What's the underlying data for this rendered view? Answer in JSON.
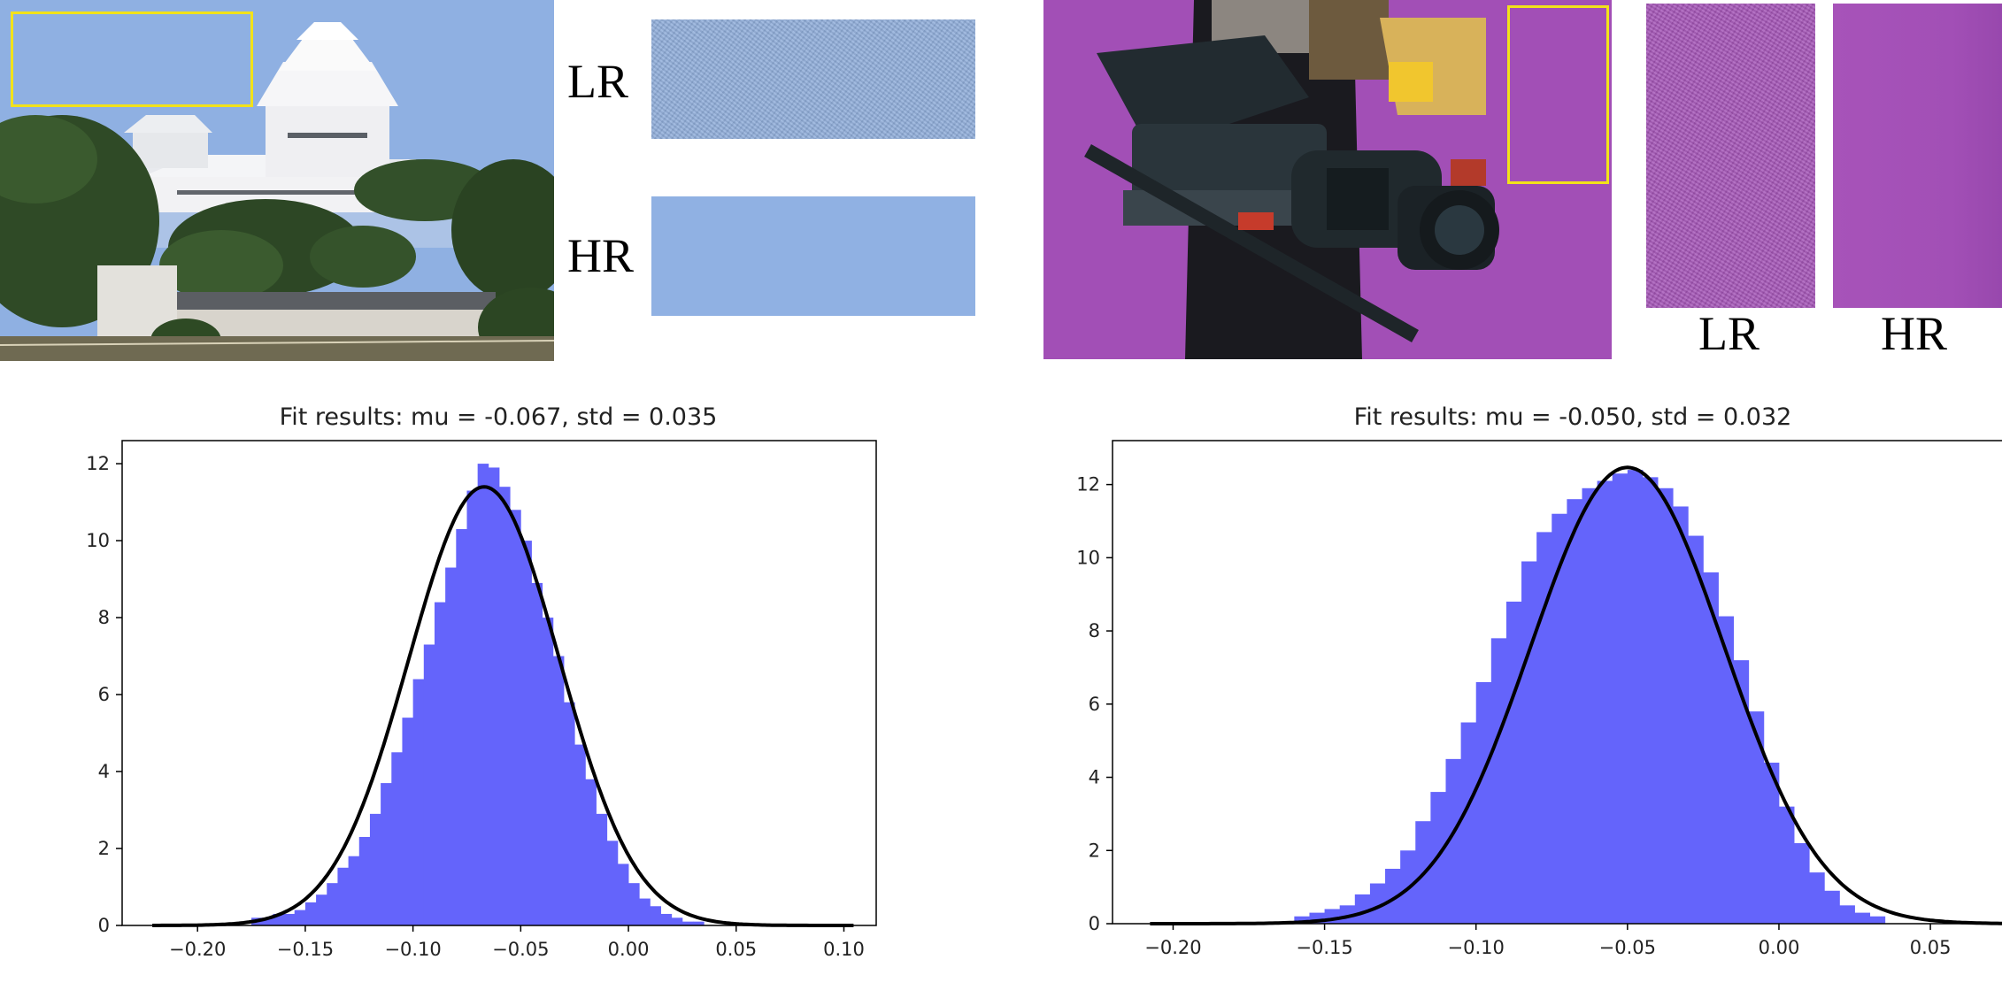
{
  "panels": {
    "left": {
      "lr_label": "LR",
      "hr_label": "HR"
    },
    "right": {
      "lr_label": "LR",
      "hr_label": "HR"
    }
  },
  "colors": {
    "sky": "#8fb0e2",
    "purple_bg": "#a24fb6",
    "highlight_box": "#f2e21a",
    "hist_fill": "#6464fb",
    "fit_curve": "#000000"
  },
  "chart_data": [
    {
      "type": "histogram",
      "title": "Fit results: mu = -0.067,  std = 0.035",
      "fit": {
        "mu": -0.067,
        "std": 0.035
      },
      "xlim": [
        -0.235,
        0.115
      ],
      "ylim": [
        0,
        12.6
      ],
      "xticks": [
        -0.2,
        -0.15,
        -0.1,
        -0.05,
        0.0,
        0.05,
        0.1
      ],
      "xtick_labels": [
        "−0.20",
        "−0.15",
        "−0.10",
        "−0.05",
        "0.00",
        "0.05",
        "0.10"
      ],
      "yticks": [
        0,
        2,
        4,
        6,
        8,
        10,
        12
      ],
      "ytick_labels": [
        "0",
        "2",
        "4",
        "6",
        "8",
        "10",
        "12"
      ],
      "bin_width": 0.005,
      "bins_x": [
        -0.175,
        -0.17,
        -0.165,
        -0.16,
        -0.155,
        -0.15,
        -0.145,
        -0.14,
        -0.135,
        -0.13,
        -0.125,
        -0.12,
        -0.115,
        -0.11,
        -0.105,
        -0.1,
        -0.095,
        -0.09,
        -0.085,
        -0.08,
        -0.075,
        -0.07,
        -0.065,
        -0.06,
        -0.055,
        -0.05,
        -0.045,
        -0.04,
        -0.035,
        -0.03,
        -0.025,
        -0.02,
        -0.015,
        -0.01,
        -0.005,
        0.0,
        0.005,
        0.01,
        0.015,
        0.02,
        0.025,
        0.03
      ],
      "bins_y": [
        0.2,
        0.2,
        0.3,
        0.3,
        0.4,
        0.6,
        0.8,
        1.1,
        1.5,
        1.8,
        2.3,
        2.9,
        3.7,
        4.5,
        5.4,
        6.4,
        7.3,
        8.4,
        9.3,
        10.3,
        11.3,
        12.0,
        11.9,
        11.4,
        10.8,
        10.0,
        8.9,
        8.0,
        7.0,
        5.8,
        4.7,
        3.8,
        2.9,
        2.2,
        1.6,
        1.1,
        0.7,
        0.5,
        0.3,
        0.2,
        0.1,
        0.1
      ]
    },
    {
      "type": "histogram",
      "title": "Fit results: mu = -0.050,  std = 0.032",
      "fit": {
        "mu": -0.05,
        "std": 0.032
      },
      "xlim": [
        -0.22,
        0.09
      ],
      "ylim": [
        0,
        13.2
      ],
      "xticks": [
        -0.2,
        -0.15,
        -0.1,
        -0.05,
        0.0,
        0.05
      ],
      "xtick_labels": [
        "−0.20",
        "−0.15",
        "−0.10",
        "−0.05",
        "0.00",
        "0.05"
      ],
      "yticks": [
        0,
        2,
        4,
        6,
        8,
        10,
        12
      ],
      "ytick_labels": [
        "0",
        "2",
        "4",
        "6",
        "8",
        "10",
        "12"
      ],
      "bin_width": 0.005,
      "bins_x": [
        -0.16,
        -0.155,
        -0.15,
        -0.145,
        -0.14,
        -0.135,
        -0.13,
        -0.125,
        -0.12,
        -0.115,
        -0.11,
        -0.105,
        -0.1,
        -0.095,
        -0.09,
        -0.085,
        -0.08,
        -0.075,
        -0.07,
        -0.065,
        -0.06,
        -0.055,
        -0.05,
        -0.045,
        -0.04,
        -0.035,
        -0.03,
        -0.025,
        -0.02,
        -0.015,
        -0.01,
        -0.005,
        0.0,
        0.005,
        0.01,
        0.015,
        0.02,
        0.025,
        0.03
      ],
      "bins_y": [
        0.2,
        0.3,
        0.4,
        0.5,
        0.8,
        1.1,
        1.5,
        2.0,
        2.8,
        3.6,
        4.5,
        5.5,
        6.6,
        7.8,
        8.8,
        9.9,
        10.7,
        11.2,
        11.6,
        11.9,
        12.1,
        12.3,
        12.4,
        12.2,
        11.9,
        11.4,
        10.6,
        9.6,
        8.4,
        7.2,
        5.8,
        4.4,
        3.2,
        2.2,
        1.4,
        0.9,
        0.5,
        0.3,
        0.2
      ]
    }
  ]
}
